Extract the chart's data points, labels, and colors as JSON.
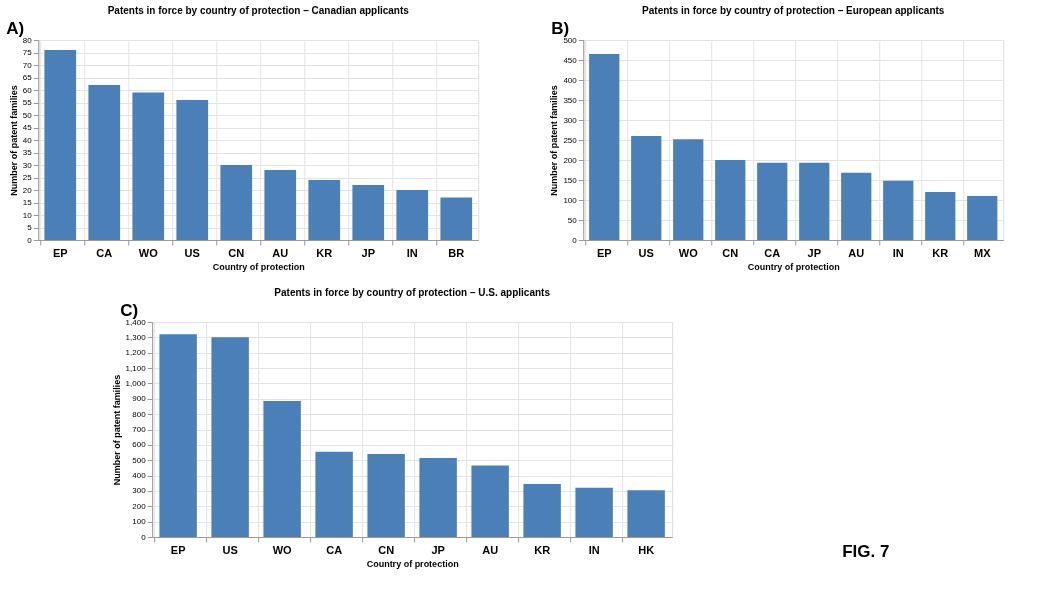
{
  "chart_data": [
    {
      "type": "bar",
      "title": "Patents in force by country of protection – Canadian applicants",
      "xlabel": "Country of protection",
      "ylabel": "Number of patent families",
      "annotations": [
        "A)"
      ],
      "categories": [
        "EP",
        "CA",
        "WO",
        "US",
        "CN",
        "AU",
        "KR",
        "JP",
        "IN",
        "BR"
      ],
      "values": [
        76,
        62,
        59,
        56,
        30,
        28,
        24,
        22,
        20,
        17
      ],
      "color": "#4a7fb8",
      "ylim": [
        0,
        80
      ],
      "yticks": [
        0,
        5,
        10,
        15,
        20,
        25,
        30,
        35,
        40,
        45,
        50,
        55,
        60,
        65,
        70,
        75,
        80
      ],
      "grid": true
    },
    {
      "type": "bar",
      "title": "Patents in force by country of protection – European applicants",
      "xlabel": "Country of protection",
      "ylabel": "Number of patent families",
      "annotations": [
        "B)"
      ],
      "categories": [
        "EP",
        "US",
        "WO",
        "CN",
        "CA",
        "JP",
        "AU",
        "IN",
        "KR",
        "MX"
      ],
      "values": [
        465,
        260,
        252,
        200,
        193,
        193,
        168,
        148,
        120,
        110
      ],
      "color": "#4a7fb8",
      "ylim": [
        0,
        500
      ],
      "yticks": [
        0,
        50,
        100,
        150,
        200,
        250,
        300,
        350,
        400,
        450,
        500
      ],
      "grid": true
    },
    {
      "type": "bar",
      "title": "Patents in force by country of protection – U.S. applicants",
      "xlabel": "Country of protection",
      "ylabel": "Number of patent families",
      "annotations": [
        "C)",
        "FIG. 7"
      ],
      "categories": [
        "EP",
        "US",
        "WO",
        "CA",
        "CN",
        "JP",
        "AU",
        "KR",
        "IN",
        "HK"
      ],
      "values": [
        1320,
        1300,
        885,
        555,
        540,
        515,
        465,
        345,
        320,
        305
      ],
      "color": "#4a7fb8",
      "ylim": [
        0,
        1400
      ],
      "yticks": [
        0,
        100,
        200,
        300,
        400,
        500,
        600,
        700,
        800,
        900,
        {
          "value": 1000,
          "label": "1,000"
        },
        {
          "value": 1100,
          "label": "1,100"
        },
        {
          "value": 1200,
          "label": "1,200"
        },
        {
          "value": 1300,
          "label": "1,300"
        },
        {
          "value": 1400,
          "label": "1,400"
        }
      ],
      "grid": true
    }
  ]
}
